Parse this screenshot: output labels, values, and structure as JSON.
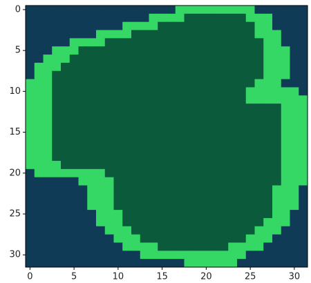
{
  "chart_data": {
    "type": "image",
    "colormap": [
      "#103b57",
      "#0c5a3c",
      "#35d765"
    ],
    "xlim": [
      -0.5,
      31.5
    ],
    "ylim": [
      31.5,
      -0.5
    ],
    "xticks": [
      0,
      5,
      10,
      15,
      20,
      25,
      30
    ],
    "yticks": [
      0,
      5,
      10,
      15,
      20,
      25,
      30
    ],
    "values": [
      [
        0,
        0,
        0,
        0,
        0,
        0,
        0,
        0,
        0,
        0,
        0,
        0,
        0,
        0,
        0,
        0,
        0,
        2,
        2,
        2,
        2,
        2,
        2,
        2,
        2,
        2,
        0,
        0,
        0,
        0,
        0,
        0
      ],
      [
        0,
        0,
        0,
        0,
        0,
        0,
        0,
        0,
        0,
        0,
        0,
        0,
        0,
        0,
        2,
        2,
        2,
        2,
        1,
        1,
        1,
        1,
        1,
        1,
        1,
        2,
        2,
        2,
        0,
        0,
        0,
        0
      ],
      [
        0,
        0,
        0,
        0,
        0,
        0,
        0,
        0,
        0,
        0,
        0,
        2,
        2,
        2,
        2,
        1,
        1,
        1,
        1,
        1,
        1,
        1,
        1,
        1,
        1,
        1,
        2,
        2,
        0,
        0,
        0,
        0
      ],
      [
        0,
        0,
        0,
        0,
        0,
        0,
        0,
        0,
        2,
        2,
        2,
        2,
        1,
        1,
        1,
        1,
        1,
        1,
        1,
        1,
        1,
        1,
        1,
        1,
        1,
        1,
        2,
        2,
        2,
        0,
        0,
        0
      ],
      [
        0,
        0,
        0,
        0,
        0,
        2,
        2,
        2,
        2,
        1,
        1,
        1,
        1,
        1,
        1,
        1,
        1,
        1,
        1,
        1,
        1,
        1,
        1,
        1,
        1,
        1,
        1,
        2,
        2,
        0,
        0,
        0
      ],
      [
        0,
        0,
        0,
        2,
        2,
        2,
        1,
        1,
        1,
        1,
        1,
        1,
        1,
        1,
        1,
        1,
        1,
        1,
        1,
        1,
        1,
        1,
        1,
        1,
        1,
        1,
        1,
        2,
        2,
        2,
        0,
        0
      ],
      [
        0,
        0,
        2,
        2,
        2,
        1,
        1,
        1,
        1,
        1,
        1,
        1,
        1,
        1,
        1,
        1,
        1,
        1,
        1,
        1,
        1,
        1,
        1,
        1,
        1,
        1,
        1,
        2,
        2,
        2,
        0,
        0
      ],
      [
        0,
        2,
        2,
        2,
        1,
        1,
        1,
        1,
        1,
        1,
        1,
        1,
        1,
        1,
        1,
        1,
        1,
        1,
        1,
        1,
        1,
        1,
        1,
        1,
        1,
        1,
        1,
        2,
        2,
        2,
        0,
        0
      ],
      [
        0,
        2,
        2,
        1,
        1,
        1,
        1,
        1,
        1,
        1,
        1,
        1,
        1,
        1,
        1,
        1,
        1,
        1,
        1,
        1,
        1,
        1,
        1,
        1,
        1,
        1,
        1,
        2,
        2,
        2,
        0,
        0
      ],
      [
        2,
        2,
        2,
        1,
        1,
        1,
        1,
        1,
        1,
        1,
        1,
        1,
        1,
        1,
        1,
        1,
        1,
        1,
        1,
        1,
        1,
        1,
        1,
        1,
        1,
        1,
        2,
        2,
        2,
        0,
        0,
        0
      ],
      [
        2,
        2,
        2,
        1,
        1,
        1,
        1,
        1,
        1,
        1,
        1,
        1,
        1,
        1,
        1,
        1,
        1,
        1,
        1,
        1,
        1,
        1,
        1,
        1,
        1,
        2,
        2,
        2,
        2,
        2,
        2,
        0
      ],
      [
        2,
        2,
        2,
        1,
        1,
        1,
        1,
        1,
        1,
        1,
        1,
        1,
        1,
        1,
        1,
        1,
        1,
        1,
        1,
        1,
        1,
        1,
        1,
        1,
        1,
        2,
        2,
        2,
        2,
        2,
        2,
        2
      ],
      [
        2,
        2,
        2,
        1,
        1,
        1,
        1,
        1,
        1,
        1,
        1,
        1,
        1,
        1,
        1,
        1,
        1,
        1,
        1,
        1,
        1,
        1,
        1,
        1,
        1,
        1,
        1,
        1,
        1,
        2,
        2,
        2
      ],
      [
        2,
        2,
        2,
        1,
        1,
        1,
        1,
        1,
        1,
        1,
        1,
        1,
        1,
        1,
        1,
        1,
        1,
        1,
        1,
        1,
        1,
        1,
        1,
        1,
        1,
        1,
        1,
        1,
        1,
        2,
        2,
        2
      ],
      [
        2,
        2,
        2,
        1,
        1,
        1,
        1,
        1,
        1,
        1,
        1,
        1,
        1,
        1,
        1,
        1,
        1,
        1,
        1,
        1,
        1,
        1,
        1,
        1,
        1,
        1,
        1,
        1,
        1,
        2,
        2,
        2
      ],
      [
        2,
        2,
        2,
        1,
        1,
        1,
        1,
        1,
        1,
        1,
        1,
        1,
        1,
        1,
        1,
        1,
        1,
        1,
        1,
        1,
        1,
        1,
        1,
        1,
        1,
        1,
        1,
        1,
        1,
        2,
        2,
        2
      ],
      [
        2,
        2,
        2,
        1,
        1,
        1,
        1,
        1,
        1,
        1,
        1,
        1,
        1,
        1,
        1,
        1,
        1,
        1,
        1,
        1,
        1,
        1,
        1,
        1,
        1,
        1,
        1,
        1,
        1,
        2,
        2,
        2
      ],
      [
        2,
        2,
        2,
        1,
        1,
        1,
        1,
        1,
        1,
        1,
        1,
        1,
        1,
        1,
        1,
        1,
        1,
        1,
        1,
        1,
        1,
        1,
        1,
        1,
        1,
        1,
        1,
        1,
        1,
        2,
        2,
        2
      ],
      [
        2,
        2,
        2,
        1,
        1,
        1,
        1,
        1,
        1,
        1,
        1,
        1,
        1,
        1,
        1,
        1,
        1,
        1,
        1,
        1,
        1,
        1,
        1,
        1,
        1,
        1,
        1,
        1,
        1,
        2,
        2,
        2
      ],
      [
        2,
        2,
        2,
        2,
        1,
        1,
        1,
        1,
        1,
        1,
        1,
        1,
        1,
        1,
        1,
        1,
        1,
        1,
        1,
        1,
        1,
        1,
        1,
        1,
        1,
        1,
        1,
        1,
        1,
        2,
        2,
        2
      ],
      [
        0,
        2,
        2,
        2,
        2,
        2,
        2,
        2,
        2,
        1,
        1,
        1,
        1,
        1,
        1,
        1,
        1,
        1,
        1,
        1,
        1,
        1,
        1,
        1,
        1,
        1,
        1,
        1,
        1,
        2,
        2,
        2
      ],
      [
        0,
        0,
        0,
        0,
        0,
        0,
        2,
        2,
        2,
        2,
        1,
        1,
        1,
        1,
        1,
        1,
        1,
        1,
        1,
        1,
        1,
        1,
        1,
        1,
        1,
        1,
        1,
        1,
        1,
        2,
        2,
        2
      ],
      [
        0,
        0,
        0,
        0,
        0,
        0,
        0,
        2,
        2,
        2,
        1,
        1,
        1,
        1,
        1,
        1,
        1,
        1,
        1,
        1,
        1,
        1,
        1,
        1,
        1,
        1,
        1,
        1,
        2,
        2,
        2,
        0
      ],
      [
        0,
        0,
        0,
        0,
        0,
        0,
        0,
        2,
        2,
        2,
        1,
        1,
        1,
        1,
        1,
        1,
        1,
        1,
        1,
        1,
        1,
        1,
        1,
        1,
        1,
        1,
        1,
        1,
        2,
        2,
        2,
        0
      ],
      [
        0,
        0,
        0,
        0,
        0,
        0,
        0,
        2,
        2,
        2,
        1,
        1,
        1,
        1,
        1,
        1,
        1,
        1,
        1,
        1,
        1,
        1,
        1,
        1,
        1,
        1,
        1,
        1,
        2,
        2,
        2,
        0
      ],
      [
        0,
        0,
        0,
        0,
        0,
        0,
        0,
        0,
        2,
        2,
        2,
        1,
        1,
        1,
        1,
        1,
        1,
        1,
        1,
        1,
        1,
        1,
        1,
        1,
        1,
        1,
        1,
        1,
        2,
        2,
        0,
        0
      ],
      [
        0,
        0,
        0,
        0,
        0,
        0,
        0,
        0,
        2,
        2,
        2,
        1,
        1,
        1,
        1,
        1,
        1,
        1,
        1,
        1,
        1,
        1,
        1,
        1,
        1,
        1,
        1,
        2,
        2,
        2,
        0,
        0
      ],
      [
        0,
        0,
        0,
        0,
        0,
        0,
        0,
        0,
        0,
        2,
        2,
        2,
        1,
        1,
        1,
        1,
        1,
        1,
        1,
        1,
        1,
        1,
        1,
        1,
        1,
        1,
        2,
        2,
        2,
        0,
        0,
        0
      ],
      [
        0,
        0,
        0,
        0,
        0,
        0,
        0,
        0,
        0,
        0,
        2,
        2,
        2,
        1,
        1,
        1,
        1,
        1,
        1,
        1,
        1,
        1,
        1,
        1,
        1,
        2,
        2,
        2,
        0,
        0,
        0,
        0
      ],
      [
        0,
        0,
        0,
        0,
        0,
        0,
        0,
        0,
        0,
        0,
        0,
        2,
        2,
        2,
        2,
        1,
        1,
        1,
        1,
        1,
        1,
        1,
        1,
        2,
        2,
        2,
        2,
        0,
        0,
        0,
        0,
        0
      ],
      [
        0,
        0,
        0,
        0,
        0,
        0,
        0,
        0,
        0,
        0,
        0,
        0,
        0,
        2,
        2,
        2,
        2,
        2,
        2,
        2,
        2,
        2,
        2,
        2,
        2,
        0,
        0,
        0,
        0,
        0,
        0,
        0
      ],
      [
        0,
        0,
        0,
        0,
        0,
        0,
        0,
        0,
        0,
        0,
        0,
        0,
        0,
        0,
        0,
        0,
        0,
        0,
        2,
        2,
        2,
        2,
        2,
        2,
        0,
        0,
        0,
        0,
        0,
        0,
        0,
        0
      ]
    ]
  }
}
